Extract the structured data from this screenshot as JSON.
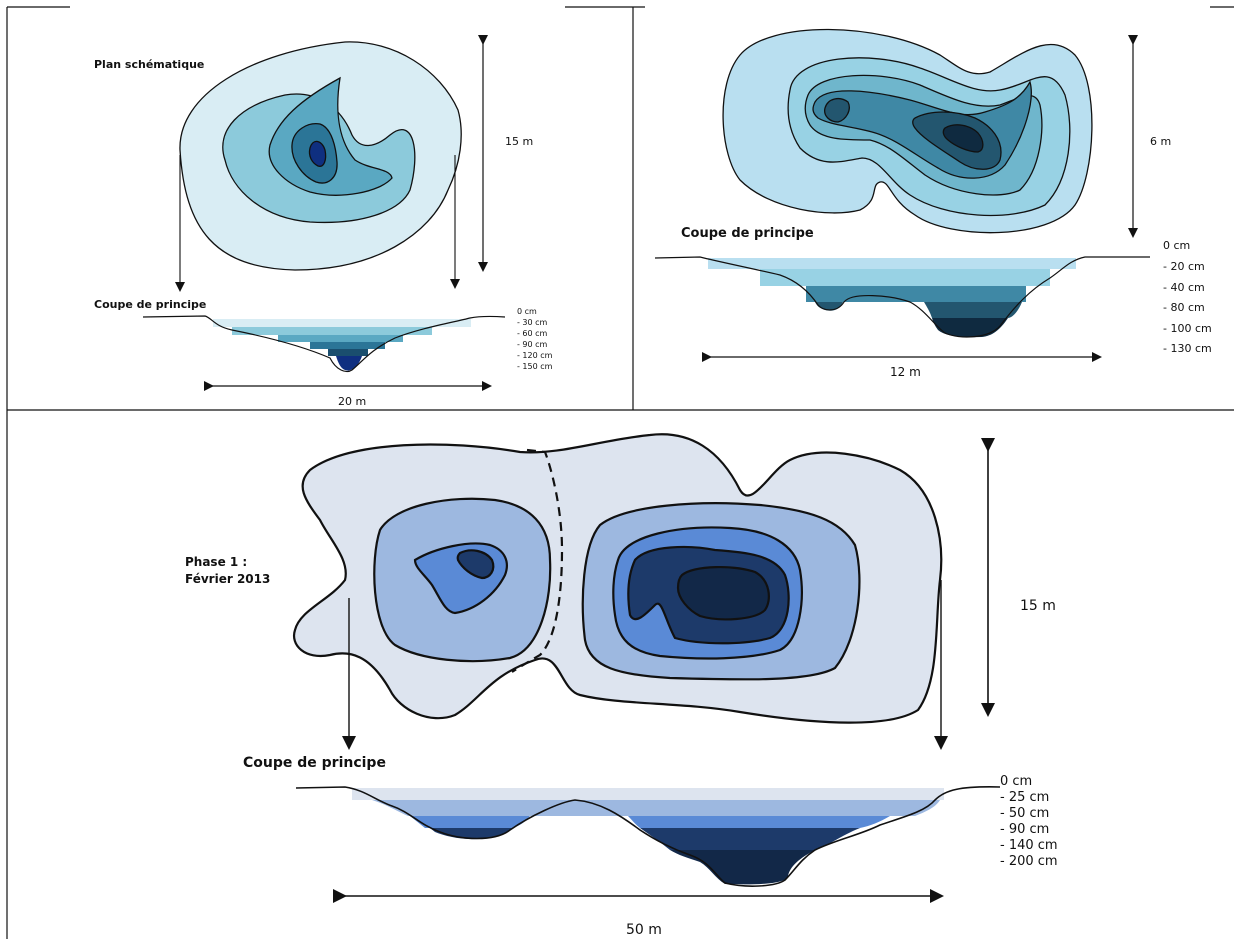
{
  "panel_a": {
    "title": "Plan schématique",
    "section_title": "Coupe de principe",
    "height_label": "15 m",
    "width_label": "20 m",
    "depths": [
      "0 cm",
      "- 30 cm",
      "- 60 cm",
      "- 90 cm",
      "- 120 cm",
      "- 150 cm"
    ]
  },
  "panel_b": {
    "section_title": "Coupe de principe",
    "height_label": "6 m",
    "width_label": "12 m",
    "depths": [
      "0 cm",
      "- 20 cm",
      "- 40 cm",
      "- 80 cm",
      "- 100 cm",
      "- 130 cm"
    ]
  },
  "panel_c": {
    "phase_label": "Phase 1 :",
    "phase_date": "Février 2013",
    "section_title": "Coupe de principe",
    "height_label": "15 m",
    "width_label": "50 m",
    "depths": [
      "0 cm",
      "- 25 cm",
      "- 50 cm",
      "- 90 cm",
      "- 140 cm",
      "- 200 cm"
    ]
  },
  "colors": {
    "a": [
      "#d9edf4",
      "#8ccadb",
      "#5aa8c2",
      "#2b7597",
      "#1a4e6e",
      "#0f2f80"
    ],
    "b": [
      "#b9dff0",
      "#98d2e4",
      "#6fb6cc",
      "#3f88a5",
      "#23566f",
      "#0f2a40"
    ],
    "c": [
      "#dde4ef",
      "#9db8e0",
      "#5a8ad6",
      "#1d3a6a",
      "#122848"
    ]
  }
}
